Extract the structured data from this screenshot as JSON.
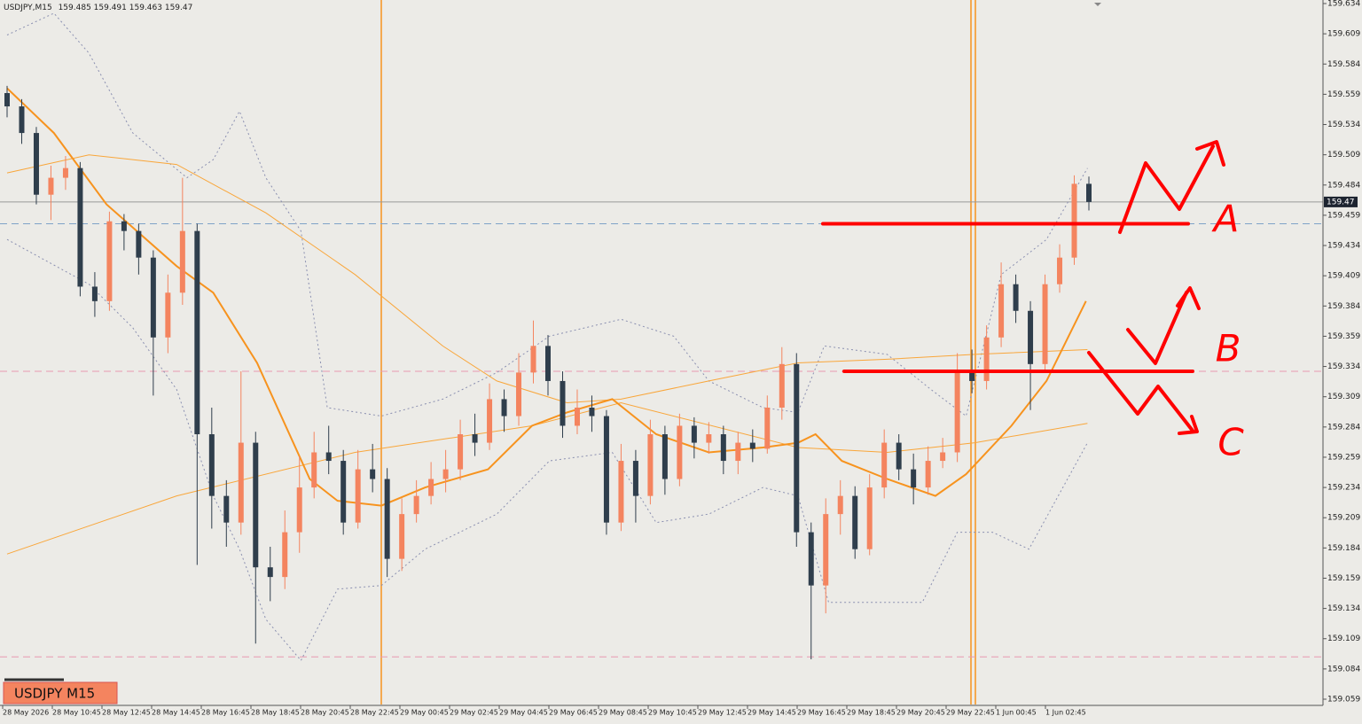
{
  "header": {
    "symbol": "USDJPY,M15"
  },
  "label_box": "USDJPY M15",
  "chart_data": {
    "type": "candlestick",
    "bull_color": "#f4845f",
    "bear_color": "#2f3e4c",
    "candles": [
      [
        159.56,
        159.566,
        159.54,
        159.549
      ],
      [
        159.549,
        159.555,
        159.518,
        159.527
      ],
      [
        159.527,
        159.532,
        159.468,
        159.476
      ],
      [
        159.476,
        159.5,
        159.455,
        159.49
      ],
      [
        159.49,
        159.508,
        159.48,
        159.498
      ],
      [
        159.498,
        159.503,
        159.392,
        159.4
      ],
      [
        159.4,
        159.412,
        159.375,
        159.388
      ],
      [
        159.388,
        159.462,
        159.38,
        159.454
      ],
      [
        159.454,
        159.46,
        159.43,
        159.446
      ],
      [
        159.446,
        159.452,
        159.41,
        159.424
      ],
      [
        159.424,
        159.43,
        159.31,
        159.358
      ],
      [
        159.358,
        159.41,
        159.345,
        159.395
      ],
      [
        159.395,
        159.49,
        159.385,
        159.446
      ],
      [
        159.446,
        159.452,
        159.17,
        159.278
      ],
      [
        159.278,
        159.3,
        159.2,
        159.227
      ],
      [
        159.227,
        159.24,
        159.185,
        159.205
      ],
      [
        159.205,
        159.33,
        159.195,
        159.271
      ],
      [
        159.271,
        159.28,
        159.105,
        159.168
      ],
      [
        159.168,
        159.185,
        159.14,
        159.16
      ],
      [
        159.16,
        159.215,
        159.15,
        159.197
      ],
      [
        159.197,
        159.26,
        159.18,
        159.234
      ],
      [
        159.234,
        159.28,
        159.225,
        159.263
      ],
      [
        159.263,
        159.285,
        159.245,
        159.256
      ],
      [
        159.256,
        159.265,
        159.195,
        159.205
      ],
      [
        159.205,
        159.265,
        159.2,
        159.249
      ],
      [
        159.249,
        159.27,
        159.23,
        159.241
      ],
      [
        159.241,
        159.25,
        159.16,
        159.175
      ],
      [
        159.175,
        159.225,
        159.165,
        159.212
      ],
      [
        159.212,
        159.24,
        159.205,
        159.227
      ],
      [
        159.227,
        159.255,
        159.22,
        159.241
      ],
      [
        159.241,
        159.265,
        159.23,
        159.249
      ],
      [
        159.249,
        159.29,
        159.24,
        159.278
      ],
      [
        159.278,
        159.295,
        159.26,
        159.271
      ],
      [
        159.271,
        159.32,
        159.265,
        159.307
      ],
      [
        159.307,
        159.315,
        159.28,
        159.293
      ],
      [
        159.293,
        159.345,
        159.285,
        159.329
      ],
      [
        159.329,
        159.372,
        159.32,
        159.351
      ],
      [
        159.351,
        159.36,
        159.31,
        159.322
      ],
      [
        159.322,
        159.33,
        159.275,
        159.285
      ],
      [
        159.285,
        159.315,
        159.278,
        159.3
      ],
      [
        159.3,
        159.31,
        159.28,
        159.293
      ],
      [
        159.293,
        159.298,
        159.195,
        159.205
      ],
      [
        159.205,
        159.27,
        159.198,
        159.256
      ],
      [
        159.256,
        159.265,
        159.205,
        159.227
      ],
      [
        159.227,
        159.29,
        159.22,
        159.278
      ],
      [
        159.278,
        159.285,
        159.228,
        159.241
      ],
      [
        159.241,
        159.295,
        159.235,
        159.285
      ],
      [
        159.285,
        159.292,
        159.258,
        159.271
      ],
      [
        159.271,
        159.288,
        159.262,
        159.278
      ],
      [
        159.278,
        159.285,
        159.245,
        159.256
      ],
      [
        159.256,
        159.28,
        159.245,
        159.271
      ],
      [
        159.271,
        159.282,
        159.255,
        159.266
      ],
      [
        159.266,
        159.31,
        159.262,
        159.3
      ],
      [
        159.3,
        159.35,
        159.29,
        159.336
      ],
      [
        159.336,
        159.345,
        159.185,
        159.197
      ],
      [
        159.197,
        159.205,
        159.092,
        159.153
      ],
      [
        159.153,
        159.225,
        159.13,
        159.212
      ],
      [
        159.212,
        159.24,
        159.195,
        159.227
      ],
      [
        159.227,
        159.235,
        159.175,
        159.183
      ],
      [
        159.183,
        159.245,
        159.178,
        159.234
      ],
      [
        159.234,
        159.282,
        159.225,
        159.271
      ],
      [
        159.271,
        159.278,
        159.24,
        159.249
      ],
      [
        159.249,
        159.262,
        159.22,
        159.234
      ],
      [
        159.234,
        159.268,
        159.228,
        159.256
      ],
      [
        159.256,
        159.275,
        159.25,
        159.263
      ],
      [
        159.263,
        159.345,
        159.255,
        159.329
      ],
      [
        159.329,
        159.348,
        159.312,
        159.322
      ],
      [
        159.322,
        159.368,
        159.315,
        159.358
      ],
      [
        159.358,
        159.42,
        159.35,
        159.402
      ],
      [
        159.402,
        159.41,
        159.37,
        159.38
      ],
      [
        159.38,
        159.388,
        159.298,
        159.336
      ],
      [
        159.336,
        159.41,
        159.33,
        159.402
      ],
      [
        159.402,
        159.435,
        159.395,
        159.424
      ],
      [
        159.424,
        159.492,
        159.418,
        159.485
      ],
      [
        159.485,
        159.491,
        159.463,
        159.47
      ]
    ],
    "ylim": [
      159.059,
      159.634
    ],
    "yticks": [
      159.634,
      159.609,
      159.584,
      159.559,
      159.534,
      159.509,
      159.484,
      159.459,
      159.434,
      159.409,
      159.384,
      159.359,
      159.334,
      159.309,
      159.284,
      159.259,
      159.234,
      159.209,
      159.184,
      159.159,
      159.134,
      159.109,
      159.084,
      159.059
    ],
    "time_labels": [
      "28 May 2026",
      "28 May 10:45",
      "28 May 12:45",
      "28 May 14:45",
      "28 May 16:45",
      "28 May 18:45",
      "28 May 20:45",
      "28 May 22:45",
      "29 May 00:45",
      "29 May 02:45",
      "29 May 04:45",
      "29 May 06:45",
      "29 May 08:45",
      "29 May 10:45",
      "29 May 12:45",
      "29 May 14:45",
      "29 May 16:45",
      "29 May 18:45",
      "29 May 20:45",
      "29 May 22:45",
      "1 Jun 00:45",
      "1 Jun 02:45"
    ],
    "hlines": [
      {
        "value": 159.452,
        "color": "#7fa3c8",
        "dashed": true
      },
      {
        "value": 159.33,
        "color": "#e89ab0",
        "dashed": true
      },
      {
        "value": 159.094,
        "color": "#e89ab0",
        "dashed": true
      }
    ],
    "lines": [
      {
        "color": "#8a8fb0",
        "width": 1,
        "dotted": true,
        "x": [
          0,
          3.2,
          5.6,
          8.6,
          12.3,
          14.1,
          15.9,
          17.7,
          20.1,
          21.9,
          25.6,
          29.8,
          33.5,
          37.1,
          42,
          45.6,
          48,
          51.7,
          54.1,
          55.9,
          60.2,
          63.2,
          65.6,
          68,
          71.1,
          73.9
        ],
        "values": [
          159.608,
          159.626,
          159.593,
          159.527,
          159.49,
          159.505,
          159.545,
          159.49,
          159.446,
          159.3,
          159.293,
          159.307,
          159.329,
          159.359,
          159.373,
          159.359,
          159.322,
          159.3,
          159.296,
          159.351,
          159.344,
          159.315,
          159.293,
          159.41,
          159.439,
          159.498
        ]
      },
      {
        "color": "#8a8fb0",
        "width": 1,
        "dotted": true,
        "x": [
          0,
          5.6,
          8.6,
          11.6,
          14.1,
          15.9,
          17.7,
          20.1,
          22.6,
          25.6,
          28.6,
          33.5,
          37.1,
          41.4,
          44.4,
          48,
          51.7,
          54.1,
          56.2,
          58.9,
          62.6,
          65,
          67.4,
          69.9,
          73.9
        ],
        "values": [
          159.439,
          159.402,
          159.366,
          159.315,
          159.227,
          159.183,
          159.125,
          159.091,
          159.15,
          159.153,
          159.183,
          159.212,
          159.256,
          159.263,
          159.205,
          159.212,
          159.234,
          159.227,
          159.139,
          159.139,
          159.139,
          159.197,
          159.197,
          159.183,
          159.271
        ]
      },
      {
        "color": "#f9a63a",
        "width": 1,
        "dotted": false,
        "x": [
          0,
          5.6,
          11.6,
          17.7,
          23.8,
          29.8,
          33.5,
          38.3,
          42,
          48,
          54.1,
          60.2,
          66.2,
          73.9
        ],
        "values": [
          159.494,
          159.509,
          159.501,
          159.461,
          159.41,
          159.351,
          159.322,
          159.304,
          159.307,
          159.322,
          159.337,
          159.34,
          159.344,
          159.348
        ]
      },
      {
        "color": "#f9a63a",
        "width": 1,
        "dotted": false,
        "x": [
          0,
          11.6,
          23.8,
          35.9,
          42,
          54.1,
          60.2,
          66.2,
          73.9
        ],
        "values": [
          159.179,
          159.227,
          159.263,
          159.285,
          159.304,
          159.267,
          159.263,
          159.271,
          159.287
        ]
      },
      {
        "color": "#f7931e",
        "width": 2,
        "dotted": false,
        "x": [
          0,
          3.2,
          6.8,
          11.6,
          14.1,
          17.1,
          20.7,
          22.6,
          25.6,
          28.6,
          32.9,
          35.9,
          38.3,
          41.4,
          44.4,
          48,
          51.7,
          54.1,
          55.3,
          57.1,
          60.2,
          63.5,
          65.6,
          68.7,
          71.1,
          73.8
        ],
        "values": [
          159.564,
          159.527,
          159.468,
          159.417,
          159.395,
          159.337,
          159.241,
          159.223,
          159.219,
          159.234,
          159.249,
          159.285,
          159.296,
          159.307,
          159.278,
          159.263,
          159.267,
          159.271,
          159.278,
          159.256,
          159.241,
          159.227,
          159.245,
          159.285,
          159.322,
          159.388
        ]
      }
    ],
    "annotations": {
      "labels": [
        "A",
        "B",
        "C"
      ],
      "levels": [
        159.452,
        159.33
      ],
      "color": "#ff0000"
    }
  }
}
